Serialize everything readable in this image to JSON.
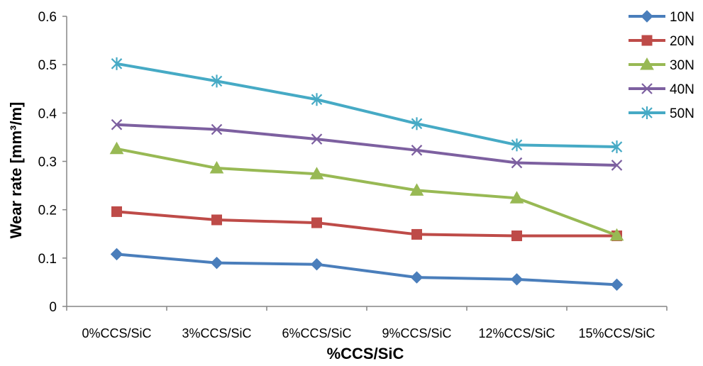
{
  "chart_data": {
    "type": "line",
    "xlabel": "%CCS/SiC",
    "ylabel": "Wear rate [mm³/m]",
    "ylim": [
      0,
      0.6
    ],
    "yticks": [
      "0",
      "0.1",
      "0.2",
      "0.3",
      "0.4",
      "0.5",
      "0.6"
    ],
    "categories": [
      "0%CCS/SiC",
      "3%CCS/SiC",
      "6%CCS/SiC",
      "9%CCS/SiC",
      "12%CCS/SiC",
      "15%CCS/SiC"
    ],
    "grid": false,
    "legend_position": "right",
    "series": [
      {
        "name": "10N",
        "color": "#4a7ebb",
        "marker": "diamond",
        "values": [
          0.108,
          0.09,
          0.087,
          0.06,
          0.056,
          0.045
        ]
      },
      {
        "name": "20N",
        "color": "#be4b48",
        "marker": "square",
        "values": [
          0.196,
          0.179,
          0.173,
          0.149,
          0.146,
          0.146
        ]
      },
      {
        "name": "30N",
        "color": "#98b954",
        "marker": "triangle",
        "values": [
          0.326,
          0.286,
          0.274,
          0.24,
          0.224,
          0.147
        ]
      },
      {
        "name": "40N",
        "color": "#7d60a0",
        "marker": "x",
        "values": [
          0.376,
          0.366,
          0.346,
          0.323,
          0.297,
          0.292
        ]
      },
      {
        "name": "50N",
        "color": "#46aac5",
        "marker": "star",
        "values": [
          0.502,
          0.466,
          0.428,
          0.378,
          0.334,
          0.33
        ]
      }
    ]
  }
}
